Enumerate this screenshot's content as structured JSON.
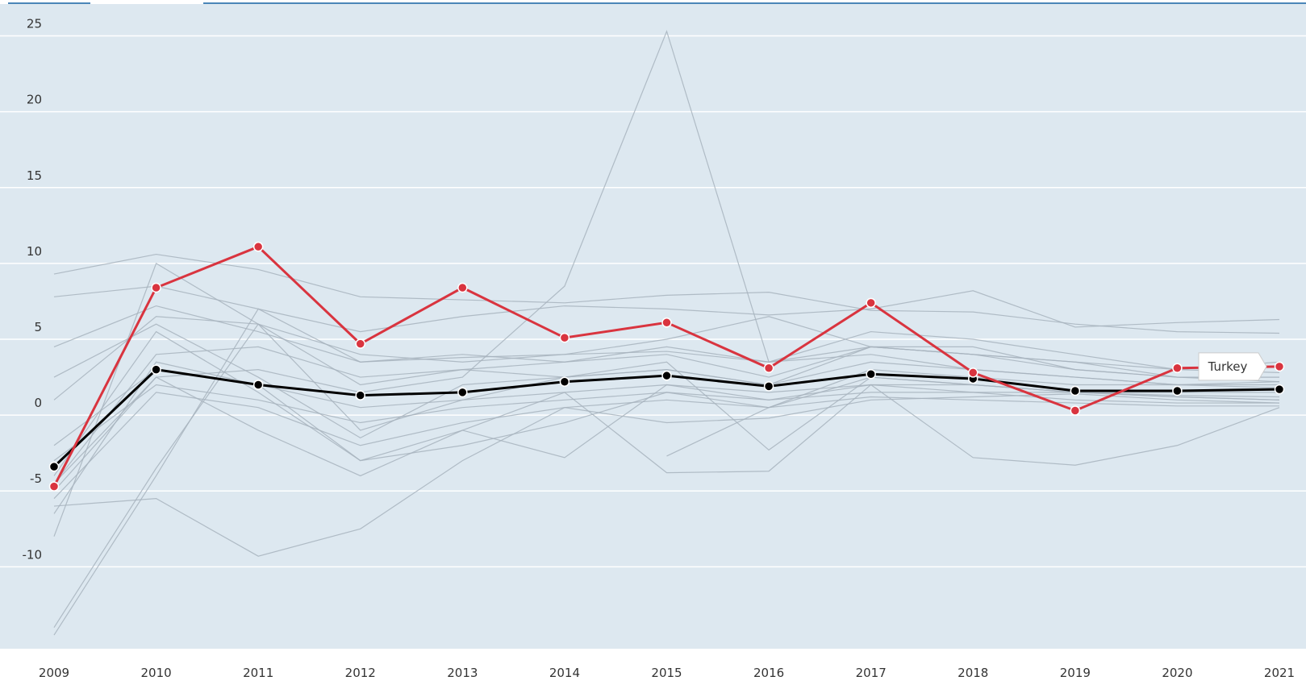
{
  "chart_data": {
    "type": "line",
    "categories": [
      "2009",
      "2010",
      "2011",
      "2012",
      "2013",
      "2014",
      "2015",
      "2016",
      "2017",
      "2018",
      "2019",
      "2020",
      "2021"
    ],
    "ylim": [
      -15.4,
      27.1
    ],
    "yticks": [
      -10,
      -5,
      0,
      5,
      10,
      15,
      20,
      25
    ],
    "grid": true,
    "series": [
      {
        "color": "#a7b3bd",
        "values": [
          -4.5,
          2.5,
          3.0,
          1.5,
          2.5,
          8.5,
          25.3,
          3.5,
          4.0,
          3.0,
          2.5,
          2.0,
          2.2
        ]
      },
      {
        "color": "#a7b3bd",
        "values": [
          -14.0,
          -3.5,
          6.0,
          2.0,
          3.0,
          2.5,
          3.0,
          2.0,
          3.5,
          3.0,
          2.5,
          2.0,
          1.8
        ]
      },
      {
        "color": "#a7b3bd",
        "values": [
          -14.5,
          -4.0,
          7.0,
          3.5,
          4.0,
          3.5,
          4.0,
          2.5,
          4.5,
          4.0,
          3.5,
          2.5,
          2.5
        ]
      },
      {
        "color": "#a7b3bd",
        "values": [
          9.3,
          10.6,
          9.6,
          7.8,
          7.6,
          7.4,
          7.9,
          8.1,
          6.9,
          6.8,
          6.0,
          5.5,
          5.4
        ]
      },
      {
        "color": "#a7b3bd",
        "values": [
          7.8,
          8.5,
          7.0,
          5.5,
          6.5,
          7.2,
          7.0,
          6.6,
          7.0,
          8.2,
          5.8,
          6.1,
          6.3
        ]
      },
      {
        "color": "#a7b3bd",
        "values": [
          4.5,
          7.2,
          5.5,
          3.5,
          3.8,
          4.0,
          4.2,
          3.5,
          4.5,
          4.0,
          3.5,
          3.0,
          2.8
        ]
      },
      {
        "color": "#a7b3bd",
        "values": [
          -8.0,
          10.0,
          6.0,
          -1.0,
          1.0,
          2.5,
          3.0,
          2.0,
          4.5,
          4.0,
          3.0,
          2.5,
          2.2
        ]
      },
      {
        "color": "#a7b3bd",
        "values": [
          -6.0,
          -5.5,
          -9.3,
          -7.5,
          -3.0,
          0.5,
          -0.5,
          -0.2,
          1.0,
          1.2,
          1.4,
          1.0,
          0.8
        ]
      },
      {
        "color": "#a7b3bd",
        "values": [
          -5.0,
          2.5,
          -1.0,
          -4.0,
          -1.0,
          1.5,
          -3.8,
          -3.7,
          2.0,
          1.5,
          1.5,
          1.2,
          1.0
        ]
      },
      {
        "color": "#a7b3bd",
        "values": [
          -4.0,
          5.5,
          1.5,
          -3.0,
          -1.0,
          -2.8,
          2.0,
          1.0,
          2.0,
          -2.8,
          -3.3,
          -2.0,
          0.5
        ]
      },
      {
        "color": "#a7b3bd",
        "values": [
          2.5,
          6.0,
          2.5,
          -1.5,
          2.0,
          2.5,
          3.5,
          -2.3,
          2.5,
          2.0,
          1.5,
          1.5,
          1.5
        ]
      },
      {
        "color": "#a7b3bd",
        "values": [
          null,
          null,
          null,
          null,
          null,
          null,
          -2.7,
          0.5,
          2.5,
          2.0,
          1.5,
          1.3,
          1.2
        ]
      },
      {
        "color": "#a7b3bd",
        "values": [
          -2.0,
          3.0,
          2.0,
          0.5,
          1.0,
          1.5,
          2.0,
          1.5,
          2.0,
          2.0,
          1.5,
          1.2,
          1.0
        ]
      },
      {
        "color": "#a7b3bd",
        "values": [
          -3.0,
          2.0,
          1.0,
          -0.5,
          0.5,
          1.0,
          1.5,
          1.0,
          1.5,
          1.5,
          1.0,
          0.8,
          0.8
        ]
      },
      {
        "color": "#a7b3bd",
        "values": [
          -5.5,
          1.5,
          0.5,
          -2.0,
          -0.5,
          0.5,
          1.0,
          0.5,
          1.2,
          1.0,
          0.8,
          0.6,
          0.6
        ]
      },
      {
        "color": "#a7b3bd",
        "values": [
          -4.5,
          4.0,
          4.5,
          2.5,
          3.0,
          3.5,
          4.5,
          3.5,
          5.5,
          5.0,
          4.0,
          3.0,
          3.5
        ]
      },
      {
        "color": "#a7b3bd",
        "values": [
          -6.5,
          3.5,
          2.0,
          -3.0,
          -2.0,
          -0.5,
          1.5,
          0.5,
          3.0,
          2.5,
          2.0,
          2.0,
          2.0
        ]
      },
      {
        "color": "#a7b3bd",
        "values": [
          1.0,
          6.5,
          6.0,
          4.0,
          3.5,
          4.0,
          5.0,
          6.5,
          4.5,
          4.5,
          3.0,
          2.5,
          2.5
        ]
      },
      {
        "color": "#000000",
        "markers": true,
        "values": [
          -3.4,
          3.0,
          2.0,
          1.3,
          1.5,
          2.2,
          2.6,
          1.9,
          2.7,
          2.4,
          1.6,
          1.6,
          1.7
        ]
      },
      {
        "name": "Turkey",
        "color": "#d9343f",
        "markers": true,
        "values": [
          -4.7,
          8.4,
          11.1,
          4.7,
          8.4,
          5.1,
          6.1,
          3.1,
          7.4,
          2.8,
          0.3,
          3.1,
          3.2
        ]
      }
    ]
  }
}
